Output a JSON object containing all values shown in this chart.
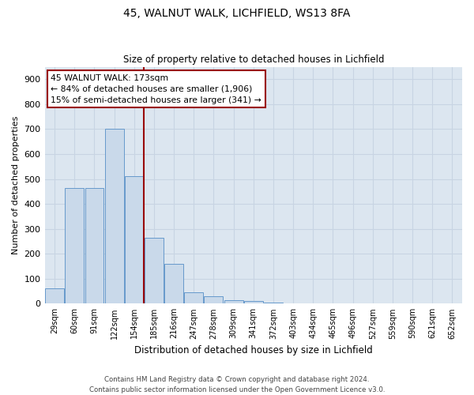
{
  "title1": "45, WALNUT WALK, LICHFIELD, WS13 8FA",
  "title2": "Size of property relative to detached houses in Lichfield",
  "xlabel": "Distribution of detached houses by size in Lichfield",
  "ylabel": "Number of detached properties",
  "categories": [
    "29sqm",
    "60sqm",
    "91sqm",
    "122sqm",
    "154sqm",
    "185sqm",
    "216sqm",
    "247sqm",
    "278sqm",
    "309sqm",
    "341sqm",
    "372sqm",
    "403sqm",
    "434sqm",
    "465sqm",
    "496sqm",
    "527sqm",
    "559sqm",
    "590sqm",
    "621sqm",
    "652sqm"
  ],
  "bar_values": [
    60,
    465,
    465,
    700,
    510,
    265,
    160,
    45,
    30,
    15,
    12,
    5,
    2,
    0,
    0,
    0,
    0,
    0,
    0,
    0,
    0
  ],
  "bar_color": "#c9d9ea",
  "bar_edge_color": "#6699cc",
  "vline_pos": 4.5,
  "vline_color": "#990000",
  "annotation_text": "45 WALNUT WALK: 173sqm\n← 84% of detached houses are smaller (1,906)\n15% of semi-detached houses are larger (341) →",
  "annotation_box_color": "#ffffff",
  "annotation_box_edge": "#990000",
  "ylim": [
    0,
    950
  ],
  "yticks": [
    0,
    100,
    200,
    300,
    400,
    500,
    600,
    700,
    800,
    900
  ],
  "grid_color": "#c8d4e3",
  "background_color": "#dce6f0",
  "footer": "Contains HM Land Registry data © Crown copyright and database right 2024.\nContains public sector information licensed under the Open Government Licence v3.0."
}
